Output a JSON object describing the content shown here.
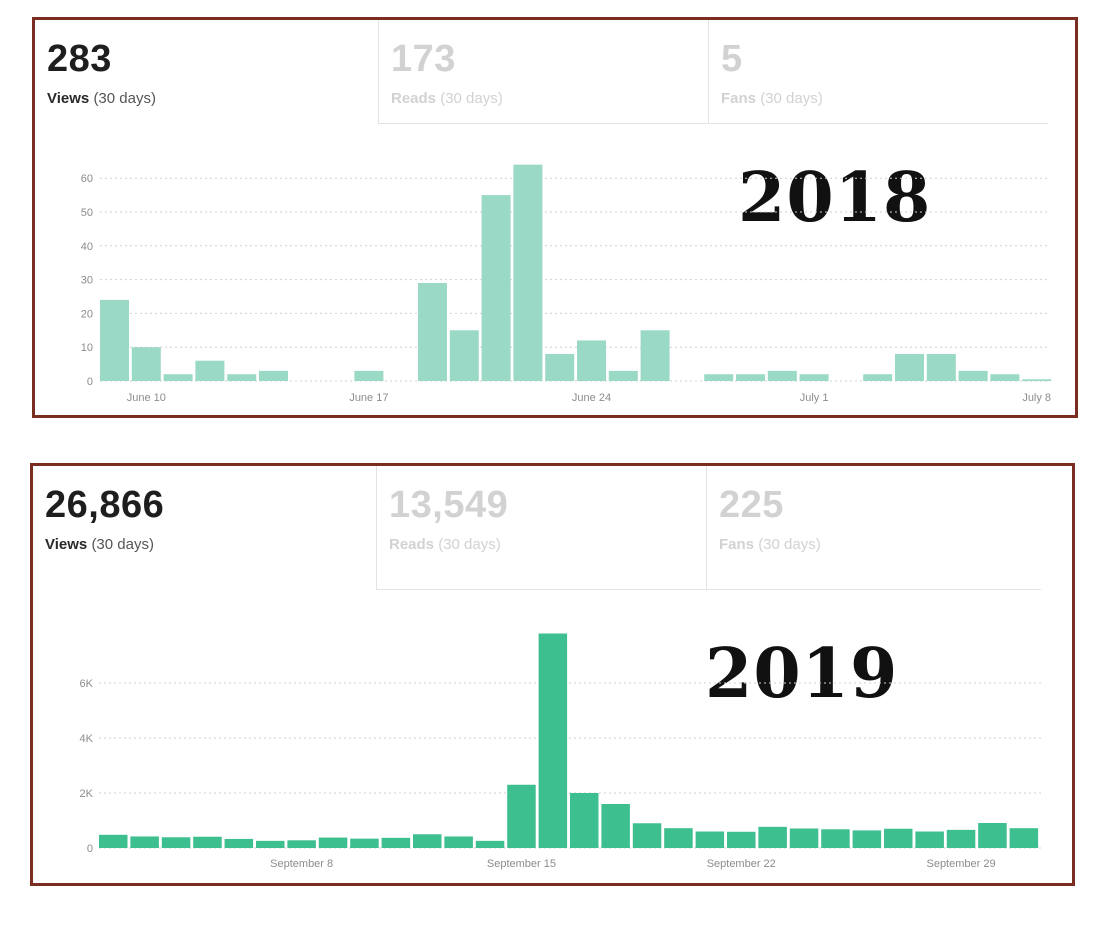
{
  "panels": [
    {
      "year_label": "2018",
      "stats": [
        {
          "value": "283",
          "label": "Views",
          "period": "(30 days)",
          "active": true
        },
        {
          "value": "173",
          "label": "Reads",
          "period": "(30 days)",
          "active": false
        },
        {
          "value": "5",
          "label": "Fans",
          "period": "(30 days)",
          "active": false
        }
      ]
    },
    {
      "year_label": "2019",
      "stats": [
        {
          "value": "26,866",
          "label": "Views",
          "period": "(30 days)",
          "active": true
        },
        {
          "value": "13,549",
          "label": "Reads",
          "period": "(30 days)",
          "active": false
        },
        {
          "value": "225",
          "label": "Fans",
          "period": "(30 days)",
          "active": false
        }
      ]
    }
  ],
  "chart_data": [
    {
      "type": "bar",
      "title": "",
      "xlabel": "",
      "ylabel": "",
      "color": "#9ad9c6",
      "ylim": [
        0,
        65
      ],
      "y_ticks": [
        0,
        10,
        20,
        30,
        40,
        50,
        60
      ],
      "y_tick_labels": [
        "0",
        "10",
        "20",
        "30",
        "40",
        "50",
        "60"
      ],
      "categories": [
        "June 9",
        "June 10",
        "June 11",
        "June 12",
        "June 13",
        "June 14",
        "June 15",
        "June 16",
        "June 17",
        "June 18",
        "June 19",
        "June 20",
        "June 21",
        "June 22",
        "June 23",
        "June 24",
        "June 25",
        "June 26",
        "June 27",
        "June 28",
        "June 29",
        "June 30",
        "July 1",
        "July 2",
        "July 3",
        "July 4",
        "July 5",
        "July 6",
        "July 7",
        "July 8"
      ],
      "values": [
        24,
        10,
        2,
        6,
        2,
        3,
        0,
        0,
        3,
        0,
        29,
        15,
        55,
        64,
        8,
        12,
        3,
        15,
        0,
        2,
        2,
        3,
        2,
        0,
        2,
        8,
        8,
        3,
        2,
        0.5
      ],
      "x_tick_labels": [
        {
          "label": "June 10",
          "index": 1
        },
        {
          "label": "June 17",
          "index": 8
        },
        {
          "label": "June 24",
          "index": 15
        },
        {
          "label": "July 1",
          "index": 22
        },
        {
          "label": "July 8",
          "index": 29
        }
      ],
      "grid": true,
      "legend": "none"
    },
    {
      "type": "bar",
      "title": "",
      "xlabel": "",
      "ylabel": "",
      "color": "#3dbf8f",
      "ylim": [
        0,
        7900
      ],
      "y_ticks": [
        0,
        2000,
        4000,
        6000
      ],
      "y_tick_labels": [
        "0",
        "2K",
        "4K",
        "6K"
      ],
      "categories": [
        "September 2",
        "September 3",
        "September 4",
        "September 5",
        "September 6",
        "September 7",
        "September 8",
        "September 9",
        "September 10",
        "September 11",
        "September 12",
        "September 13",
        "September 14",
        "September 15",
        "September 16",
        "September 17",
        "September 18",
        "September 19",
        "September 20",
        "September 21",
        "September 22",
        "September 23",
        "September 24",
        "September 25",
        "September 26",
        "September 27",
        "September 28",
        "September 29",
        "September 30",
        "October 1"
      ],
      "values": [
        480,
        420,
        390,
        410,
        330,
        260,
        280,
        380,
        340,
        370,
        500,
        420,
        260,
        2300,
        7800,
        2000,
        1600,
        900,
        720,
        600,
        590,
        770,
        710,
        680,
        640,
        700,
        600,
        660,
        910,
        720
      ],
      "x_tick_labels": [
        {
          "label": "September 8",
          "index": 6
        },
        {
          "label": "September 15",
          "index": 13
        },
        {
          "label": "September 22",
          "index": 20
        },
        {
          "label": "September 29",
          "index": 27
        }
      ],
      "grid": true,
      "legend": "none"
    }
  ]
}
